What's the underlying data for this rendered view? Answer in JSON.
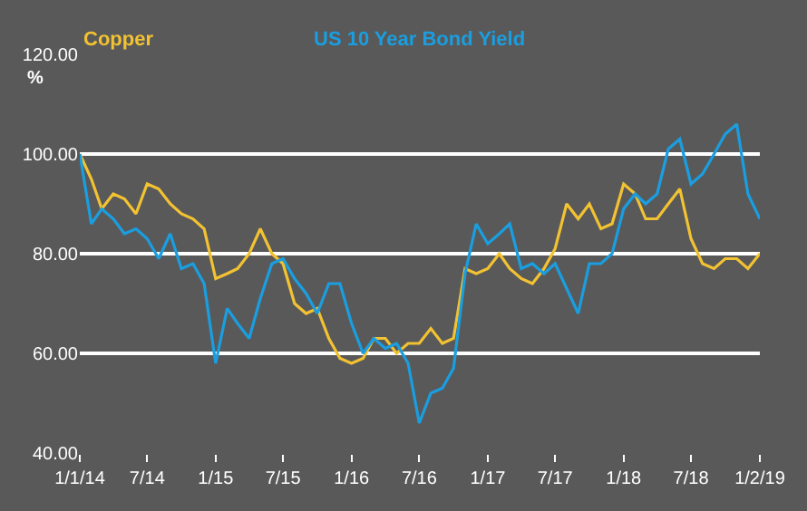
{
  "chart_data": {
    "type": "line",
    "ylabel": "%",
    "ylim": [
      40,
      120
    ],
    "yticks": [
      {
        "value": 40,
        "label": "40.00"
      },
      {
        "value": 60,
        "label": "60.00"
      },
      {
        "value": 80,
        "label": "80.00"
      },
      {
        "value": 100,
        "label": "100.00"
      },
      {
        "value": 120,
        "label": "120.00"
      }
    ],
    "xlim": [
      "2014-01-01",
      "2019-01-02"
    ],
    "xticks": [
      {
        "value": "2014-01-01",
        "label": "1/1/14"
      },
      {
        "value": "2014-07-01",
        "label": "7/14"
      },
      {
        "value": "2015-01-01",
        "label": "1/15"
      },
      {
        "value": "2015-07-01",
        "label": "7/15"
      },
      {
        "value": "2016-01-01",
        "label": "1/16"
      },
      {
        "value": "2016-07-01",
        "label": "7/16"
      },
      {
        "value": "2017-01-01",
        "label": "1/17"
      },
      {
        "value": "2017-07-01",
        "label": "7/17"
      },
      {
        "value": "2018-01-01",
        "label": "1/18"
      },
      {
        "value": "2018-07-01",
        "label": "7/18"
      },
      {
        "value": "2019-01-02",
        "label": "1/2/19"
      }
    ],
    "x": [
      "2014-01-01",
      "2014-02-01",
      "2014-03-01",
      "2014-04-01",
      "2014-05-01",
      "2014-06-01",
      "2014-07-01",
      "2014-08-01",
      "2014-09-01",
      "2014-10-01",
      "2014-11-01",
      "2014-12-01",
      "2015-01-01",
      "2015-02-01",
      "2015-03-01",
      "2015-04-01",
      "2015-05-01",
      "2015-06-01",
      "2015-07-01",
      "2015-08-01",
      "2015-09-01",
      "2015-10-01",
      "2015-11-01",
      "2015-12-01",
      "2016-01-01",
      "2016-02-01",
      "2016-03-01",
      "2016-04-01",
      "2016-05-01",
      "2016-06-01",
      "2016-07-01",
      "2016-08-01",
      "2016-09-01",
      "2016-10-01",
      "2016-11-01",
      "2016-12-01",
      "2017-01-01",
      "2017-02-01",
      "2017-03-01",
      "2017-04-01",
      "2017-05-01",
      "2017-06-01",
      "2017-07-01",
      "2017-08-01",
      "2017-09-01",
      "2017-10-01",
      "2017-11-01",
      "2017-12-01",
      "2018-01-01",
      "2018-02-01",
      "2018-03-01",
      "2018-04-01",
      "2018-05-01",
      "2018-06-01",
      "2018-07-01",
      "2018-08-01",
      "2018-09-01",
      "2018-10-01",
      "2018-11-01",
      "2018-12-01",
      "2019-01-02"
    ],
    "series": [
      {
        "name": "Copper",
        "color": "#f2c232",
        "values": [
          100,
          95,
          89,
          92,
          91,
          88,
          94,
          93,
          90,
          88,
          87,
          85,
          75,
          76,
          77,
          80,
          85,
          80,
          78,
          70,
          68,
          69,
          63,
          59,
          58,
          59,
          63,
          63,
          60,
          62,
          62,
          65,
          62,
          63,
          77,
          76,
          77,
          80,
          77,
          75,
          74,
          77,
          81,
          90,
          87,
          90,
          85,
          86,
          94,
          92,
          87,
          87,
          90,
          93,
          83,
          78,
          77,
          79,
          79,
          77,
          80
        ]
      },
      {
        "name": "US 10 Year Bond Yield",
        "color": "#1a9ee0",
        "values": [
          100,
          86,
          89,
          87,
          84,
          85,
          83,
          79,
          84,
          77,
          78,
          74,
          58,
          69,
          66,
          63,
          71,
          78,
          79,
          75,
          72,
          68,
          74,
          74,
          66,
          60,
          63,
          61,
          62,
          58,
          46,
          52,
          53,
          57,
          76,
          86,
          82,
          84,
          86,
          77,
          78,
          76,
          78,
          73,
          68,
          78,
          78,
          80,
          89,
          92,
          90,
          92,
          101,
          103,
          94,
          96,
          100,
          104,
          106,
          92,
          87
        ]
      }
    ],
    "grid": "y",
    "legend": false
  }
}
